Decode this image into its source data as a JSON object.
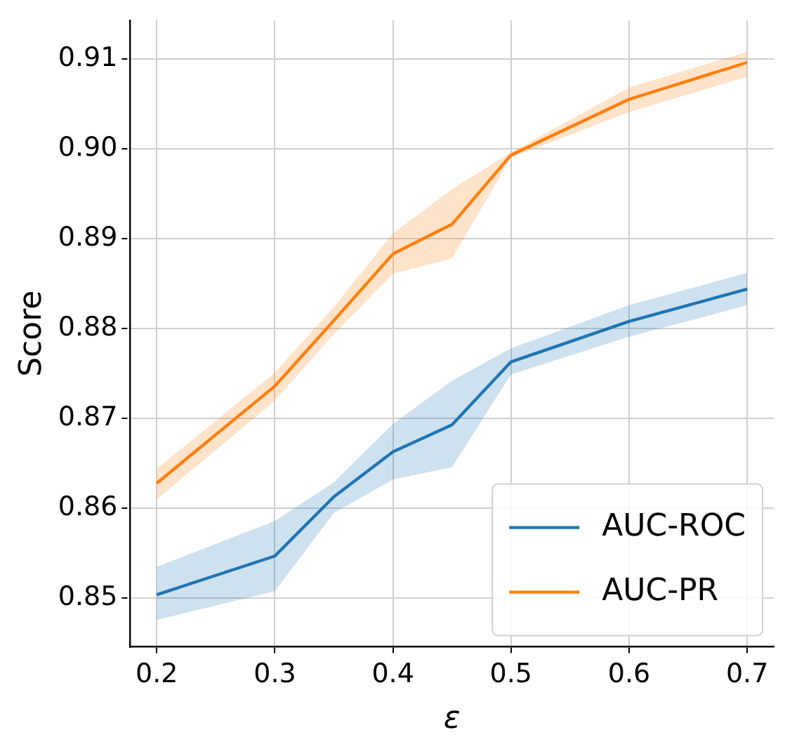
{
  "chart_data": {
    "type": "line",
    "xlabel": "ε",
    "ylabel": "Score",
    "x": [
      0.2,
      0.3,
      0.35,
      0.4,
      0.45,
      0.5,
      0.6,
      0.7
    ],
    "series": [
      {
        "name": "AUC-ROC",
        "color": "#1f77b4",
        "values": [
          0.8504,
          0.8547,
          0.8613,
          0.8663,
          0.8693,
          0.8763,
          0.8808,
          0.8844
        ],
        "lower": [
          0.8476,
          0.8508,
          0.8595,
          0.8632,
          0.8646,
          0.8749,
          0.8791,
          0.8826
        ],
        "upper": [
          0.8535,
          0.8586,
          0.8629,
          0.8694,
          0.8742,
          0.8778,
          0.8826,
          0.8862
        ]
      },
      {
        "name": "AUC-PR",
        "color": "#ff7f0e",
        "values": [
          0.8628,
          0.8736,
          0.8809,
          0.8883,
          0.8916,
          0.8993,
          0.9055,
          0.9096
        ],
        "lower": [
          0.861,
          0.872,
          0.8794,
          0.8861,
          0.8878,
          0.899,
          0.9041,
          0.908
        ],
        "upper": [
          0.8644,
          0.8751,
          0.8824,
          0.8906,
          0.8955,
          0.8996,
          0.9068,
          0.9108
        ]
      }
    ],
    "xlim": [
      0.1775,
      0.7225
    ],
    "ylim": [
      0.8446,
      0.9143
    ],
    "xticks": [
      0.2,
      0.3,
      0.4,
      0.5,
      0.6,
      0.7
    ],
    "yticks": [
      0.85,
      0.86,
      0.87,
      0.88,
      0.89,
      {
        "value": 0.9,
        "label": "0.90"
      },
      0.91
    ],
    "grid": true,
    "legend": "bottom right",
    "line_style": "solid",
    "marker": "none"
  }
}
